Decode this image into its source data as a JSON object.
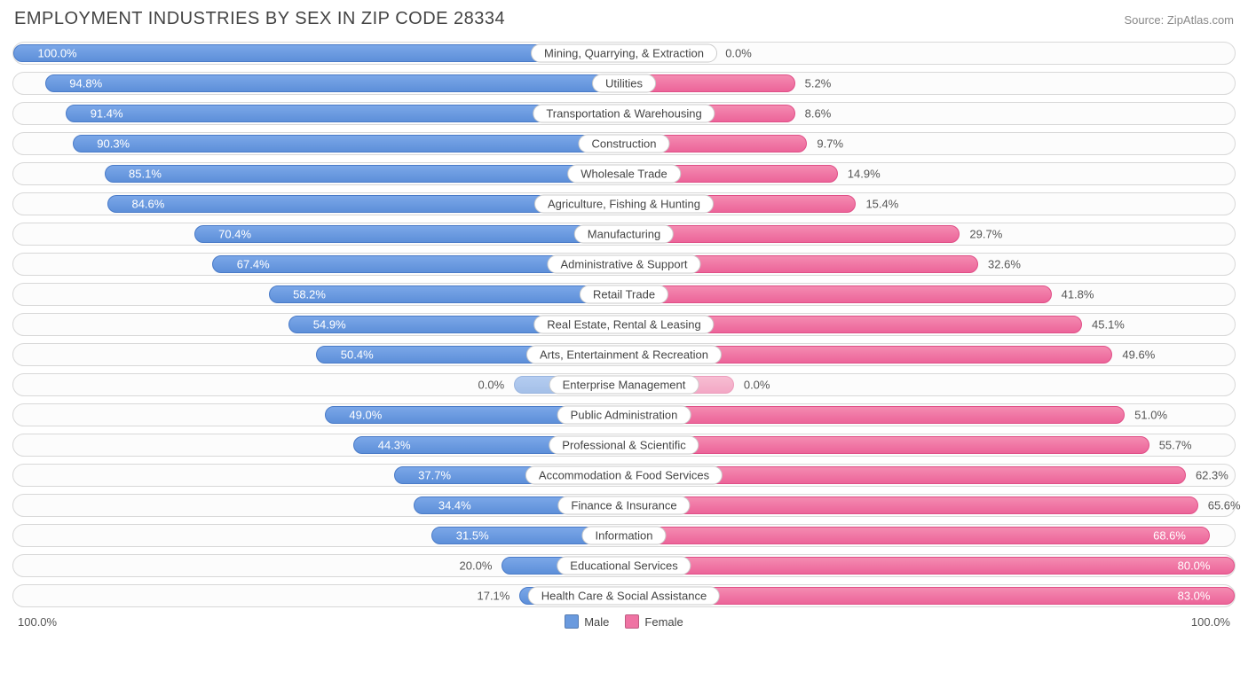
{
  "title": "EMPLOYMENT INDUSTRIES BY SEX IN ZIP CODE 28334",
  "source": "Source: ZipAtlas.com",
  "chart": {
    "type": "diverging-bar",
    "male_color": "#6a9ade",
    "male_border": "#4a7bc8",
    "female_color": "#ef73a3",
    "female_border": "#e04f87",
    "row_border_color": "#d8d8d8",
    "background_color": "#ffffff",
    "label_box_border": "#cccccc",
    "font_size_row": 13,
    "font_size_title": 20,
    "axis_max_label": "100.0%",
    "rows": [
      {
        "label": "Mining, Quarrying, & Extraction",
        "male": 100.0,
        "female": 0.0,
        "male_bar": 100.0,
        "female_bar": 15.0,
        "female_faded": true
      },
      {
        "label": "Utilities",
        "male": 94.8,
        "female": 5.2,
        "male_bar": 94.8,
        "female_bar": 28.0
      },
      {
        "label": "Transportation & Warehousing",
        "male": 91.4,
        "female": 8.6,
        "male_bar": 91.4,
        "female_bar": 28.0
      },
      {
        "label": "Construction",
        "male": 90.3,
        "female": 9.7,
        "male_bar": 90.3,
        "female_bar": 30.0
      },
      {
        "label": "Wholesale Trade",
        "male": 85.1,
        "female": 14.9,
        "male_bar": 85.1,
        "female_bar": 35.0
      },
      {
        "label": "Agriculture, Fishing & Hunting",
        "male": 84.6,
        "female": 15.4,
        "male_bar": 84.6,
        "female_bar": 38.0
      },
      {
        "label": "Manufacturing",
        "male": 70.4,
        "female": 29.7,
        "male_bar": 70.4,
        "female_bar": 55.0
      },
      {
        "label": "Administrative & Support",
        "male": 67.4,
        "female": 32.6,
        "male_bar": 67.4,
        "female_bar": 58.0
      },
      {
        "label": "Retail Trade",
        "male": 58.2,
        "female": 41.8,
        "male_bar": 58.2,
        "female_bar": 70.0
      },
      {
        "label": "Real Estate, Rental & Leasing",
        "male": 54.9,
        "female": 45.1,
        "male_bar": 54.9,
        "female_bar": 75.0
      },
      {
        "label": "Arts, Entertainment & Recreation",
        "male": 50.4,
        "female": 49.6,
        "male_bar": 50.4,
        "female_bar": 80.0
      },
      {
        "label": "Enterprise Management",
        "male": 0.0,
        "female": 0.0,
        "male_bar": 18.0,
        "female_bar": 18.0,
        "male_faded": true,
        "female_faded": true
      },
      {
        "label": "Public Administration",
        "male": 49.0,
        "female": 51.0,
        "male_bar": 49.0,
        "female_bar": 82.0
      },
      {
        "label": "Professional & Scientific",
        "male": 44.3,
        "female": 55.7,
        "male_bar": 44.3,
        "female_bar": 86.0
      },
      {
        "label": "Accommodation & Food Services",
        "male": 37.7,
        "female": 62.3,
        "male_bar": 37.7,
        "female_bar": 92.0
      },
      {
        "label": "Finance & Insurance",
        "male": 34.4,
        "female": 65.6,
        "male_bar": 34.4,
        "female_bar": 94.0
      },
      {
        "label": "Information",
        "male": 31.5,
        "female": 68.6,
        "male_bar": 31.5,
        "female_bar": 96.0
      },
      {
        "label": "Educational Services",
        "male": 20.0,
        "female": 80.0,
        "male_bar": 20.0,
        "female_bar": 100.0
      },
      {
        "label": "Health Care & Social Assistance",
        "male": 17.1,
        "female": 83.0,
        "male_bar": 17.1,
        "female_bar": 100.0
      }
    ]
  },
  "legend": {
    "male": "Male",
    "female": "Female"
  }
}
